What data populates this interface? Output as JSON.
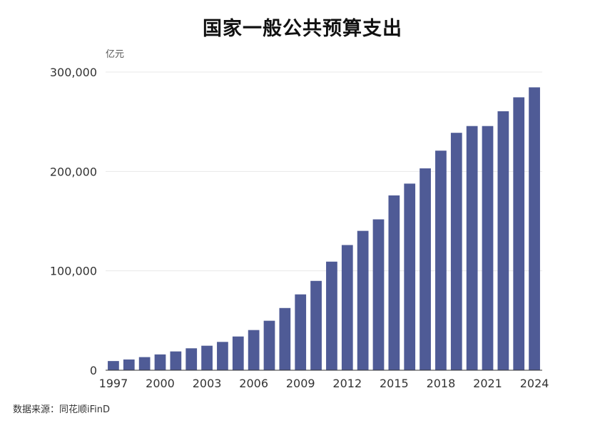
{
  "chart_data": {
    "type": "bar",
    "title": "国家一般公共预算支出",
    "ylabel": "亿元",
    "xlabel": "",
    "source": "数据来源：同花顺iFinD",
    "color": "#4F5B96",
    "grid": true,
    "ylim": [
      0,
      300000
    ],
    "y_ticks": [
      "0",
      "100,000",
      "200,000",
      "300,000"
    ],
    "y_tick_values": [
      0,
      100000,
      200000,
      300000
    ],
    "x_tick_labels": [
      "1997",
      "2000",
      "2003",
      "2006",
      "2009",
      "2012",
      "2015",
      "2018",
      "2021",
      "2024"
    ],
    "categories": [
      1997,
      1998,
      1999,
      2000,
      2001,
      2002,
      2003,
      2004,
      2005,
      2006,
      2007,
      2008,
      2009,
      2010,
      2011,
      2012,
      2013,
      2014,
      2015,
      2016,
      2017,
      2018,
      2019,
      2020,
      2021,
      2022,
      2023,
      2024
    ],
    "values": [
      9234,
      10798,
      13188,
      15887,
      18903,
      22053,
      24650,
      28487,
      33930,
      40423,
      49781,
      62593,
      76300,
      89874,
      109248,
      125953,
      140212,
      151786,
      175878,
      187755,
      203085,
      220904,
      238858,
      245679,
      245673,
      260552,
      274574,
      284612
    ]
  }
}
